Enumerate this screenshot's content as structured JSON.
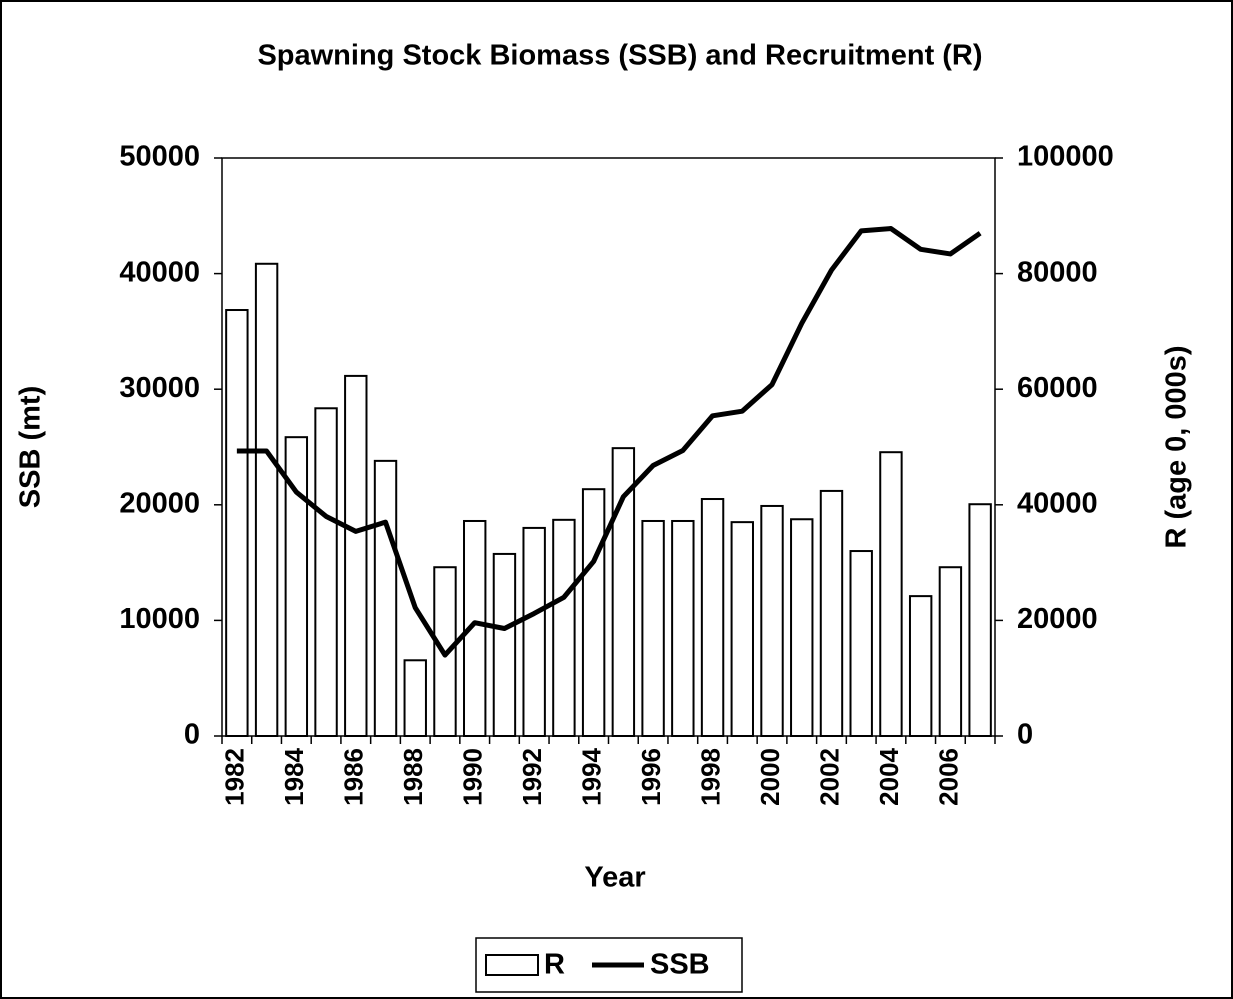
{
  "chart_data": {
    "type": "bar",
    "title": "Spawning Stock Biomass (SSB) and Recruitment (R)",
    "x_label": "Year",
    "y_label": "SSB (mt)",
    "y2_label": "R (age 0, 000s)",
    "categories": [
      "1982",
      null,
      "1984",
      null,
      "1986",
      null,
      "1988",
      null,
      "1990",
      null,
      "1992",
      null,
      "1994",
      null,
      "1996",
      null,
      "1998",
      null,
      "2000",
      null,
      "2002",
      null,
      "2004",
      null,
      "2006",
      null
    ],
    "series": [
      {
        "name": "R",
        "type": "bar",
        "axis": "y2",
        "color": "#ffffff",
        "values": [
          73700,
          81700,
          51700,
          56700,
          62300,
          47600,
          13100,
          29200,
          37200,
          31500,
          36000,
          37400,
          42700,
          49800,
          37200,
          37200,
          41000,
          37000,
          39800,
          37500,
          42400,
          32000,
          49100,
          24200,
          29200,
          40100
        ]
      },
      {
        "name": "SSB",
        "type": "line",
        "color": "#000000",
        "values": [
          24650,
          24650,
          21100,
          19000,
          17700,
          18500,
          11100,
          7000,
          9800,
          9300,
          10600,
          12000,
          15100,
          20700,
          23400,
          24700,
          27700,
          28100,
          30400,
          35700,
          40300,
          43700,
          43900,
          42100,
          41700,
          43500
        ]
      }
    ],
    "ylim": [
      0,
      50000
    ],
    "yticks": [
      0,
      10000,
      20000,
      30000,
      40000,
      50000
    ],
    "y2lim": [
      0,
      100000
    ],
    "y2ticks": [
      0,
      20000,
      40000,
      60000,
      80000,
      100000
    ],
    "legend": "bottom"
  }
}
